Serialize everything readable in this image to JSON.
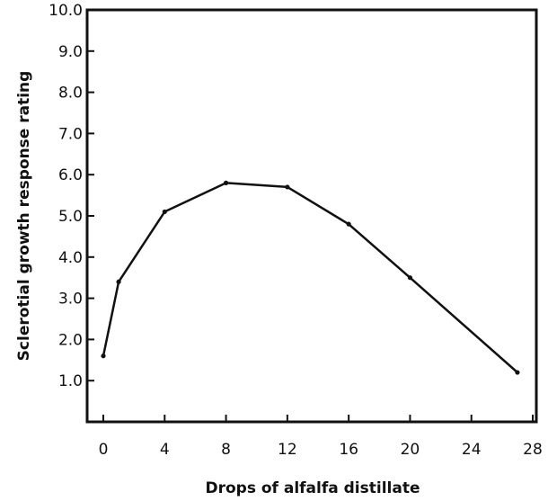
{
  "chart_data": {
    "type": "line",
    "title": "",
    "xlabel": "Drops of alfalfa distillate",
    "ylabel": "Sclerotial growth response rating",
    "xlim": [
      0,
      28
    ],
    "ylim": [
      0.0,
      10.0
    ],
    "x_ticks": [
      0,
      4,
      8,
      12,
      16,
      20,
      24,
      28
    ],
    "x_tick_labels": [
      "0",
      "4",
      "8",
      "12",
      "16",
      "20",
      "24",
      "28"
    ],
    "y_ticks": [
      1.0,
      2.0,
      3.0,
      4.0,
      5.0,
      6.0,
      7.0,
      8.0,
      9.0,
      10.0
    ],
    "y_tick_labels": [
      "1.0",
      "2.0",
      "3.0",
      "4.0",
      "5.0",
      "6.0",
      "7.0",
      "8.0",
      "9.0",
      "10.0"
    ],
    "grid": false,
    "legend": "none",
    "line_color": "#111111",
    "series": [
      {
        "x": [
          0,
          1,
          4,
          8,
          12,
          16,
          20,
          27
        ],
        "y": [
          1.6,
          3.4,
          5.1,
          5.8,
          5.7,
          4.8,
          3.5,
          1.2
        ]
      }
    ]
  }
}
